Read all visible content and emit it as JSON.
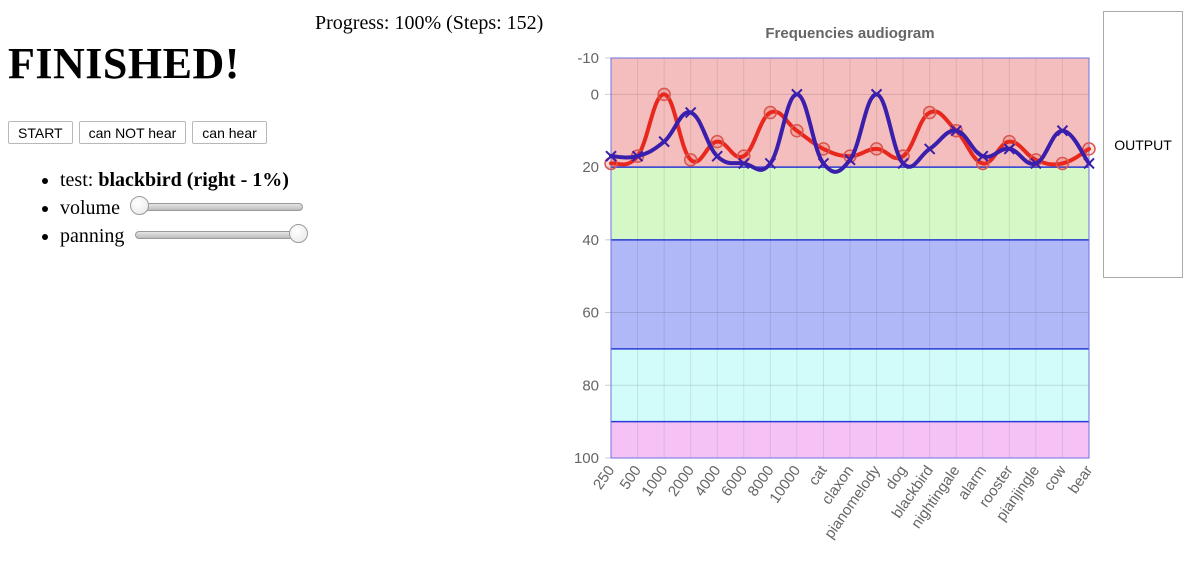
{
  "status": {
    "progress_text": "Progress: 100% (Steps: 152)",
    "title": "FINISHED!"
  },
  "buttons": {
    "start": "START",
    "cannot_hear": "can NOT hear",
    "can_hear": "can hear"
  },
  "info": {
    "test_label": "test:",
    "test_value": "blackbird (right - 1%)",
    "volume_label": "volume",
    "volume_value": 0,
    "panning_label": "panning",
    "panning_value": 1
  },
  "output_label": "OUTPUT",
  "chart_data": {
    "type": "line",
    "title": "Frequencies audiogram",
    "categories": [
      "250",
      "500",
      "1000",
      "2000",
      "4000",
      "6000",
      "8000",
      "10000",
      "cat",
      "claxon",
      "pianomelody",
      "dog",
      "blackbird",
      "nightingale",
      "alarm",
      "rooster",
      "pianjingle",
      "cow",
      "bear"
    ],
    "ylim": [
      -10,
      100
    ],
    "y_inverted": true,
    "yticks": [
      -10,
      0,
      20,
      40,
      60,
      80,
      100
    ],
    "bands": [
      {
        "from": -10,
        "to": 20,
        "color": "#f5bebe"
      },
      {
        "from": 20,
        "to": 40,
        "color": "#d4f8c6"
      },
      {
        "from": 40,
        "to": 70,
        "color": "#b0b8f8"
      },
      {
        "from": 70,
        "to": 90,
        "color": "#d2fcfa"
      },
      {
        "from": 90,
        "to": 100,
        "color": "#f6c2f6"
      }
    ],
    "series": [
      {
        "name": "red",
        "color": "#e8281e",
        "marker": "circle",
        "values": [
          19,
          17,
          0,
          18,
          13,
          17,
          5,
          10,
          15,
          17,
          15,
          17,
          5,
          10,
          19,
          13,
          18,
          19,
          15
        ]
      },
      {
        "name": "blue",
        "color": "#3a1eac",
        "marker": "x",
        "values": [
          17,
          17,
          13,
          5,
          17,
          19,
          19,
          0,
          19,
          18,
          0,
          19,
          15,
          10,
          17,
          15,
          19,
          10,
          19
        ]
      }
    ]
  }
}
